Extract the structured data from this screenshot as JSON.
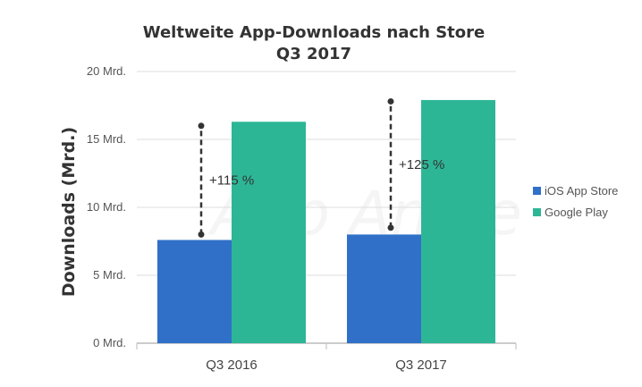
{
  "chart_data": {
    "type": "bar",
    "title": "Weltweite App-Downloads nach Store",
    "subtitle": "Q3 2017",
    "ylabel": "Downloads (Mrd.)",
    "xlabel": "",
    "categories": [
      "Q3 2016",
      "Q3 2017"
    ],
    "series": [
      {
        "name": "iOS App Store",
        "values": [
          7.6,
          8.0
        ],
        "color": "#3070c8"
      },
      {
        "name": "Google Play",
        "values": [
          16.3,
          17.9
        ],
        "color": "#2db696"
      }
    ],
    "ylim": [
      0,
      20
    ],
    "yticks": [
      0,
      5,
      10,
      15,
      20
    ],
    "ytick_labels": [
      "0 Mrd.",
      "5 Mrd.",
      "10 Mrd.",
      "15 Mrd.",
      "20 Mrd."
    ],
    "grid": true,
    "legend_position": "right",
    "annotations": [
      {
        "category": "Q3 2016",
        "text": "+115 %",
        "from": 8.0,
        "to": 16.0
      },
      {
        "category": "Q3 2017",
        "text": "+125 %",
        "from": 8.5,
        "to": 17.8
      }
    ],
    "watermark": "App Annie"
  }
}
